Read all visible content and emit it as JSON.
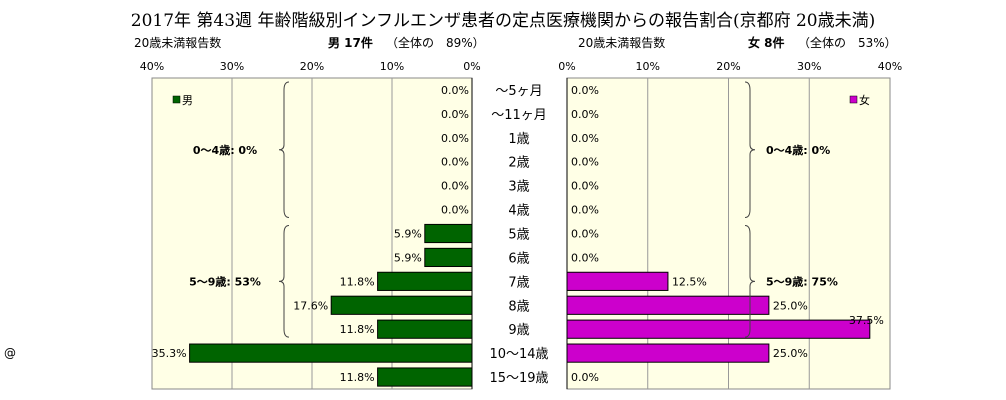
{
  "title": "2017年 第43週 年齢階級別インフルエンザ患者の定点医療機関からの報告割合(京都府 20歳未満)",
  "corner_mark": "@",
  "chart_data": {
    "type": "bar",
    "categories": [
      "〜5ヶ月",
      "〜11ヶ月",
      "1歳",
      "2歳",
      "3歳",
      "4歳",
      "5歳",
      "6歳",
      "7歳",
      "8歳",
      "9歳",
      "10〜14歳",
      "15〜19歳"
    ],
    "xlim": [
      0,
      40
    ],
    "ticks": [
      "0%",
      "10%",
      "20%",
      "30%",
      "40%"
    ],
    "grid": true,
    "panels": [
      {
        "side": "left",
        "header_left": "20歳未満報告数",
        "header_main": "男 17件",
        "header_sub": "（全体の　89%）",
        "legend": "男",
        "color": "#006400",
        "values": [
          0.0,
          0.0,
          0.0,
          0.0,
          0.0,
          0.0,
          5.9,
          5.9,
          11.8,
          17.6,
          11.8,
          35.3,
          11.8
        ],
        "labels": [
          "0.0%",
          "0.0%",
          "0.0%",
          "0.0%",
          "0.0%",
          "0.0%",
          "5.9%",
          "5.9%",
          "11.8%",
          "17.6%",
          "11.8%",
          "35.3%",
          "11.8%"
        ],
        "group_labels": [
          "0〜4歳: 0%",
          "5〜9歳: 53%"
        ]
      },
      {
        "side": "right",
        "header_left": "20歳未満報告数",
        "header_main": "女 8件",
        "header_sub": "（全体の　53%）",
        "legend": "女",
        "color": "#CC00CC",
        "values": [
          0.0,
          0.0,
          0.0,
          0.0,
          0.0,
          0.0,
          0.0,
          0.0,
          12.5,
          25.0,
          37.5,
          25.0,
          0.0
        ],
        "labels": [
          "0.0%",
          "0.0%",
          "0.0%",
          "0.0%",
          "0.0%",
          "0.0%",
          "0.0%",
          "0.0%",
          "12.5%",
          "25.0%",
          "37.5%",
          "25.0%",
          "0.0%"
        ],
        "group_labels": [
          "0〜4歳: 0%",
          "5〜9歳: 75%"
        ]
      }
    ]
  }
}
